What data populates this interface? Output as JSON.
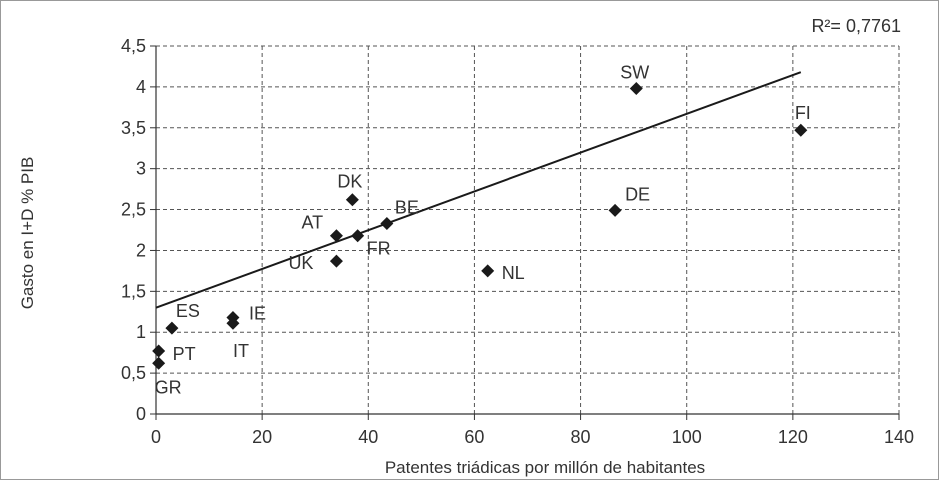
{
  "chart_data": {
    "type": "scatter",
    "title": "",
    "xlabel": "Patentes triádicas por millón de habitantes",
    "ylabel": "Gasto en I+D % PIB",
    "xlim": [
      0,
      140
    ],
    "ylim": [
      0,
      4.5
    ],
    "x_ticks": [
      0,
      20,
      40,
      60,
      80,
      100,
      120,
      140
    ],
    "y_ticks": [
      0,
      0.5,
      1,
      1.5,
      2,
      2.5,
      3,
      3.5,
      4,
      4.5
    ],
    "x_tick_labels": [
      "0",
      "20",
      "40",
      "60",
      "80",
      "100",
      "120",
      "140"
    ],
    "y_tick_labels": [
      "0",
      "0,5",
      "1",
      "1,5",
      "2",
      "2,5",
      "3",
      "3,5",
      "4",
      "4,5"
    ],
    "grid": true,
    "marker_color": "#1a1a1a",
    "annotation": "R²= 0,7761",
    "points": [
      {
        "label": "SW",
        "x": 90.5,
        "y": 3.98
      },
      {
        "label": "FI",
        "x": 121.5,
        "y": 3.47
      },
      {
        "label": "DE",
        "x": 86.5,
        "y": 2.49
      },
      {
        "label": "DK",
        "x": 37,
        "y": 2.62
      },
      {
        "label": "BE",
        "x": 43.5,
        "y": 2.33
      },
      {
        "label": "AT",
        "x": 34,
        "y": 2.18
      },
      {
        "label": "FR",
        "x": 38,
        "y": 2.18
      },
      {
        "label": "UK",
        "x": 34,
        "y": 1.87
      },
      {
        "label": "NL",
        "x": 62.5,
        "y": 1.75
      },
      {
        "label": "ES",
        "x": 3,
        "y": 1.05
      },
      {
        "label": "IE",
        "x": 14.5,
        "y": 1.18
      },
      {
        "label": "IT",
        "x": 14.5,
        "y": 1.11
      },
      {
        "label": "PT",
        "x": 0.5,
        "y": 0.77
      },
      {
        "label": "GR",
        "x": 0.5,
        "y": 0.62
      }
    ],
    "trendline": {
      "x": [
        0,
        121.5
      ],
      "y": [
        1.3,
        4.18
      ]
    }
  }
}
